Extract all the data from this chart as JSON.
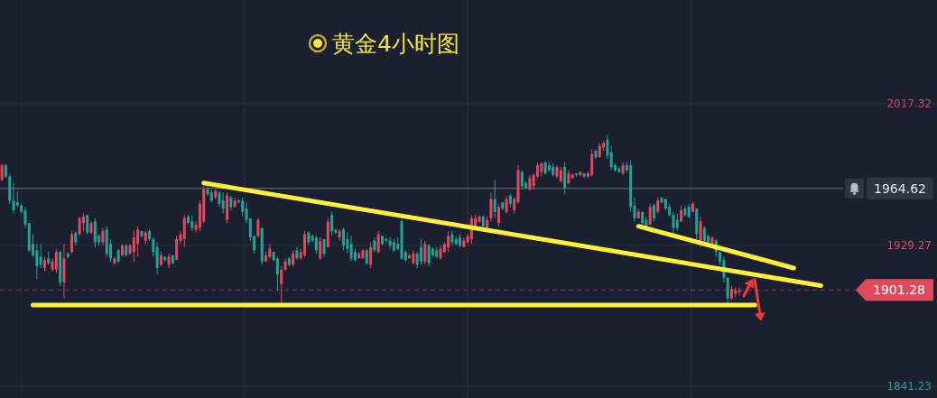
{
  "chart_data": {
    "type": "candlestick",
    "title": "黄金4小时图",
    "categories": [
      null,
      null,
      null,
      null,
      null,
      null,
      null,
      null,
      null,
      null,
      null,
      null,
      null,
      null,
      null,
      null,
      null,
      null,
      null,
      null,
      null,
      null,
      null,
      null,
      null,
      null,
      null,
      null,
      null,
      null,
      null,
      null,
      null,
      null,
      null,
      null,
      null,
      null,
      null,
      null,
      null,
      null,
      null,
      null,
      null,
      null,
      null,
      null,
      null,
      null,
      null,
      null,
      null,
      null,
      null,
      null,
      null,
      null,
      null,
      null,
      null,
      null,
      null,
      null,
      null,
      null,
      null,
      null,
      null,
      null,
      null,
      null,
      null,
      null,
      null,
      null,
      null,
      null,
      null,
      null,
      null,
      null,
      null,
      null,
      null,
      null,
      null,
      null,
      null,
      null,
      null,
      null,
      null,
      null,
      null,
      null,
      null,
      null,
      null,
      null,
      null,
      null,
      null,
      null,
      null,
      null,
      null,
      null,
      null,
      null,
      null,
      null,
      null,
      null,
      null,
      null,
      null,
      null,
      null,
      null,
      null,
      null,
      null,
      null,
      null,
      null,
      null,
      null,
      null,
      null,
      null,
      null,
      null,
      null,
      null,
      null,
      null,
      null,
      null,
      null,
      null,
      null,
      null,
      null,
      null,
      null,
      null,
      null,
      null,
      null,
      null,
      null,
      null,
      null,
      null,
      null,
      null,
      null,
      null,
      null,
      null,
      null,
      null,
      null,
      null,
      null,
      null,
      null,
      null,
      null,
      null,
      null,
      null,
      null,
      null,
      null,
      null,
      null,
      null,
      null,
      null,
      null,
      null,
      null,
      null,
      null,
      null,
      null,
      null,
      null,
      null,
      null,
      null,
      null,
      null,
      null,
      null,
      null,
      null,
      null,
      null,
      null,
      null,
      null,
      null,
      null,
      null,
      null,
      null,
      null,
      null,
      null,
      null,
      null,
      null,
      null,
      null
    ],
    "ohlc": [
      [
        1970,
        1980,
        1969,
        1979
      ],
      [
        1979,
        1980,
        1971,
        1972
      ],
      [
        1972,
        1973,
        1955,
        1957
      ],
      [
        1957,
        1968,
        1949,
        1951
      ],
      [
        1956,
        1963,
        1953,
        1954
      ],
      [
        1954,
        1955,
        1949,
        1950
      ],
      [
        1951,
        1953,
        1940,
        1942
      ],
      [
        1943,
        1943,
        1925,
        1926
      ],
      [
        1930,
        1936,
        1922,
        1923
      ],
      [
        1926,
        1930,
        1908,
        1916
      ],
      [
        1922,
        1930,
        1915,
        1917
      ],
      [
        1915,
        1922,
        1913,
        1920
      ],
      [
        1921,
        1925,
        1917,
        1918
      ],
      [
        1914,
        1921,
        1913,
        1919
      ],
      [
        1914,
        1927,
        1912,
        1925
      ],
      [
        1925,
        1926,
        1904,
        1906
      ],
      [
        1906,
        1930,
        1896,
        1921
      ],
      [
        1924,
        1925,
        1921,
        1922
      ],
      [
        1925,
        1938,
        1924,
        1936
      ],
      [
        1937,
        1938,
        1929,
        1931
      ],
      [
        1936,
        1947,
        1935,
        1946
      ],
      [
        1943,
        1949,
        1938,
        1947
      ],
      [
        1948,
        1948,
        1936,
        1937
      ],
      [
        1937,
        1944,
        1936,
        1943
      ],
      [
        1944,
        1946,
        1928,
        1931
      ],
      [
        1935,
        1936,
        1929,
        1931
      ],
      [
        1931,
        1940,
        1929,
        1938
      ],
      [
        1939,
        1941,
        1922,
        1924
      ],
      [
        1930,
        1933,
        1919,
        1921
      ],
      [
        1918,
        1922,
        1917,
        1921
      ],
      [
        1926,
        1927,
        1918,
        1919
      ],
      [
        1923,
        1930,
        1922,
        1929
      ],
      [
        1929,
        1930,
        1922,
        1923
      ],
      [
        1924,
        1930,
        1923,
        1929
      ],
      [
        1925,
        1938,
        1919,
        1934
      ],
      [
        1930,
        1941,
        1922,
        1939
      ],
      [
        1938,
        1938,
        1934,
        1935
      ],
      [
        1932,
        1938,
        1930,
        1937
      ],
      [
        1938,
        1939,
        1932,
        1933
      ],
      [
        1933,
        1934,
        1922,
        1925
      ],
      [
        1928,
        1931,
        1911,
        1915
      ],
      [
        1917,
        1925,
        1916,
        1923
      ],
      [
        1922,
        1922,
        1919,
        1920
      ],
      [
        1917,
        1924,
        1915,
        1922
      ],
      [
        1923,
        1923,
        1917,
        1918
      ],
      [
        1920,
        1935,
        1920,
        1933
      ],
      [
        1932,
        1938,
        1930,
        1936
      ],
      [
        1933,
        1948,
        1928,
        1946
      ],
      [
        1947,
        1948,
        1942,
        1943
      ],
      [
        1944,
        1948,
        1938,
        1940
      ],
      [
        1939,
        1944,
        1937,
        1942
      ],
      [
        1940,
        1957,
        1938,
        1955
      ],
      [
        1944,
        1966,
        1943,
        1964
      ],
      [
        1964,
        1966,
        1960,
        1961
      ],
      [
        1962,
        1964,
        1956,
        1957
      ],
      [
        1959,
        1964,
        1958,
        1963
      ],
      [
        1962,
        1963,
        1953,
        1955
      ],
      [
        1957,
        1962,
        1949,
        1952
      ],
      [
        1945,
        1962,
        1943,
        1960
      ],
      [
        1959,
        1960,
        1951,
        1953
      ],
      [
        1953,
        1959,
        1953,
        1957
      ],
      [
        1957,
        1958,
        1955,
        1956
      ],
      [
        1957,
        1959,
        1947,
        1950
      ],
      [
        1952,
        1956,
        1943,
        1945
      ],
      [
        1946,
        1946,
        1932,
        1934
      ],
      [
        1935,
        1935,
        1924,
        1926
      ],
      [
        1935,
        1946,
        1934,
        1945
      ],
      [
        1940,
        1940,
        1917,
        1919
      ],
      [
        1919,
        1925,
        1919,
        1923
      ],
      [
        1922,
        1930,
        1921,
        1927
      ],
      [
        1925,
        1925,
        1919,
        1920
      ],
      [
        1921,
        1922,
        1901,
        1911
      ],
      [
        1905,
        1916,
        1893,
        1914
      ],
      [
        1914,
        1921,
        1913,
        1919
      ],
      [
        1921,
        1922,
        1916,
        1917
      ],
      [
        1917,
        1926,
        1916,
        1924
      ],
      [
        1926,
        1928,
        1920,
        1921
      ],
      [
        1921,
        1927,
        1920,
        1925
      ],
      [
        1923,
        1938,
        1922,
        1936
      ],
      [
        1937,
        1938,
        1929,
        1931
      ],
      [
        1935,
        1936,
        1931,
        1932
      ],
      [
        1934,
        1935,
        1924,
        1926
      ],
      [
        1921,
        1934,
        1920,
        1932
      ],
      [
        1933,
        1933,
        1922,
        1924
      ],
      [
        1928,
        1946,
        1928,
        1944
      ],
      [
        1948,
        1950,
        1935,
        1938
      ],
      [
        1939,
        1939,
        1936,
        1937
      ],
      [
        1934,
        1939,
        1932,
        1938
      ],
      [
        1939,
        1940,
        1926,
        1929
      ],
      [
        1933,
        1937,
        1924,
        1927
      ],
      [
        1930,
        1935,
        1919,
        1921
      ],
      [
        1925,
        1927,
        1919,
        1920
      ],
      [
        1921,
        1925,
        1921,
        1924
      ],
      [
        1921,
        1927,
        1921,
        1926
      ],
      [
        1926,
        1927,
        1917,
        1918
      ],
      [
        1917,
        1931,
        1915,
        1928
      ],
      [
        1932,
        1934,
        1925,
        1926
      ],
      [
        1925,
        1938,
        1924,
        1936
      ],
      [
        1935,
        1935,
        1929,
        1930
      ],
      [
        1933,
        1934,
        1931,
        1932
      ],
      [
        1932,
        1934,
        1927,
        1929
      ],
      [
        1931,
        1933,
        1925,
        1926
      ],
      [
        1930,
        1934,
        1926,
        1927
      ],
      [
        1944,
        1945,
        1920,
        1921
      ],
      [
        1925,
        1926,
        1919,
        1920
      ],
      [
        1921,
        1924,
        1921,
        1923
      ],
      [
        1918,
        1926,
        1917,
        1924
      ],
      [
        1924,
        1925,
        1915,
        1917
      ],
      [
        1928,
        1933,
        1917,
        1919
      ],
      [
        1919,
        1932,
        1917,
        1930
      ],
      [
        1929,
        1930,
        1916,
        1918
      ],
      [
        1927,
        1928,
        1922,
        1923
      ],
      [
        1926,
        1928,
        1921,
        1922
      ],
      [
        1921,
        1929,
        1920,
        1927
      ],
      [
        1925,
        1931,
        1924,
        1930
      ],
      [
        1928,
        1938,
        1925,
        1935
      ],
      [
        1936,
        1938,
        1929,
        1931
      ],
      [
        1933,
        1935,
        1929,
        1930
      ],
      [
        1934,
        1936,
        1928,
        1929
      ],
      [
        1928,
        1934,
        1928,
        1932
      ],
      [
        1931,
        1936,
        1930,
        1935
      ],
      [
        1933,
        1948,
        1930,
        1946
      ],
      [
        1941,
        1948,
        1940,
        1946
      ],
      [
        1944,
        1948,
        1943,
        1947
      ],
      [
        1947,
        1948,
        1940,
        1941
      ],
      [
        1940,
        1947,
        1939,
        1945
      ],
      [
        1946,
        1962,
        1944,
        1958
      ],
      [
        1958,
        1970,
        1946,
        1950
      ],
      [
        1943,
        1955,
        1941,
        1953
      ],
      [
        1956,
        1956,
        1951,
        1952
      ],
      [
        1950,
        1960,
        1949,
        1958
      ],
      [
        1960,
        1961,
        1953,
        1955
      ],
      [
        1951,
        1959,
        1949,
        1958
      ],
      [
        1956,
        1979,
        1955,
        1976
      ],
      [
        1975,
        1976,
        1964,
        1966
      ],
      [
        1968,
        1969,
        1964,
        1965
      ],
      [
        1964,
        1973,
        1963,
        1971
      ],
      [
        1966,
        1974,
        1964,
        1973
      ],
      [
        1972,
        1981,
        1971,
        1979
      ],
      [
        1975,
        1981,
        1972,
        1980
      ],
      [
        1981,
        1981,
        1973,
        1974
      ],
      [
        1979,
        1981,
        1975,
        1976
      ],
      [
        1978,
        1980,
        1972,
        1973
      ],
      [
        1972,
        1979,
        1971,
        1978
      ],
      [
        1969,
        1978,
        1968,
        1976
      ],
      [
        1978,
        1981,
        1961,
        1965
      ],
      [
        1968,
        1976,
        1967,
        1974
      ],
      [
        1971,
        1974,
        1971,
        1973
      ],
      [
        1974,
        1974,
        1972,
        1973
      ],
      [
        1973,
        1975,
        1972,
        1975
      ],
      [
        1974,
        1974,
        1971,
        1972
      ],
      [
        1972,
        1975,
        1971,
        1974
      ],
      [
        1973,
        1989,
        1972,
        1986
      ],
      [
        1988,
        1989,
        1983,
        1984
      ],
      [
        1984,
        1993,
        1984,
        1991
      ],
      [
        1990,
        1994,
        1988,
        1993
      ],
      [
        1995,
        1998,
        1983,
        1985
      ],
      [
        1987,
        1991,
        1976,
        1978
      ],
      [
        1979,
        1980,
        1975,
        1976
      ],
      [
        1977,
        1978,
        1974,
        1975
      ],
      [
        1974,
        1981,
        1973,
        1979
      ],
      [
        1979,
        1981,
        1975,
        1976
      ],
      [
        1979,
        1982,
        1950,
        1953
      ],
      [
        1954,
        1959,
        1944,
        1946
      ],
      [
        1946,
        1952,
        1946,
        1950
      ],
      [
        1950,
        1950,
        1942,
        1943
      ],
      [
        1945,
        1947,
        1940,
        1941
      ],
      [
        1942,
        1955,
        1942,
        1953
      ],
      [
        1954,
        1955,
        1944,
        1946
      ],
      [
        1950,
        1959,
        1949,
        1957
      ],
      [
        1959,
        1959,
        1955,
        1956
      ],
      [
        1958,
        1958,
        1951,
        1952
      ],
      [
        1953,
        1955,
        1947,
        1948
      ],
      [
        1948,
        1950,
        1937,
        1940
      ],
      [
        1945,
        1949,
        1938,
        1940
      ],
      [
        1944,
        1954,
        1944,
        1951
      ],
      [
        1952,
        1954,
        1947,
        1948
      ],
      [
        1953,
        1955,
        1946,
        1947
      ],
      [
        1950,
        1956,
        1950,
        1955
      ],
      [
        1952,
        1952,
        1933,
        1936
      ],
      [
        1932,
        1947,
        1928,
        1944
      ],
      [
        1940,
        1941,
        1930,
        1932
      ],
      [
        1935,
        1936,
        1930,
        1931
      ],
      [
        1930,
        1935,
        1930,
        1934
      ],
      [
        1932,
        1933,
        1922,
        1925
      ],
      [
        1925,
        1925,
        1917,
        1919
      ],
      [
        1920,
        1922,
        1906,
        1909
      ],
      [
        1909,
        1909,
        1893,
        1896
      ],
      [
        1896,
        1904,
        1895,
        1902
      ],
      [
        1899,
        1903,
        1897,
        1901
      ],
      [
        1900,
        1903,
        1898,
        1901
      ],
      null,
      null,
      null,
      null,
      null,
      null,
      null,
      null,
      null,
      null,
      null,
      null,
      null,
      null,
      null,
      null,
      null,
      null,
      null,
      null,
      null,
      null,
      null,
      null,
      null,
      null
    ],
    "series": [
      {
        "type": "line",
        "color": "#fff03a",
        "values": [
          null,
          null,
          null,
          null,
          null,
          null,
          null,
          null,
          null,
          null,
          null,
          null,
          null,
          null,
          null,
          null,
          null,
          null,
          null,
          null,
          null,
          null,
          null,
          null,
          null,
          null,
          null,
          null,
          null,
          null,
          null,
          null,
          null,
          null,
          null,
          null,
          null,
          null,
          null,
          null,
          null,
          null,
          null,
          null,
          null,
          null,
          null,
          null,
          null,
          null,
          null,
          null,
          1968,
          null,
          null,
          null,
          null,
          null,
          null,
          null,
          null,
          null,
          null,
          null,
          null,
          null,
          null,
          null,
          null,
          null,
          null,
          null,
          null,
          null,
          null,
          null,
          null,
          null,
          null,
          null,
          null,
          null,
          null,
          null,
          null,
          null,
          null,
          null,
          null,
          null,
          null,
          null,
          null,
          null,
          null,
          null,
          null,
          null,
          null,
          null,
          null,
          null,
          null,
          null,
          null,
          null,
          null,
          null,
          null,
          null,
          null,
          null,
          null,
          null,
          null,
          null,
          null,
          null,
          null,
          null,
          null,
          null,
          null,
          null,
          null,
          null,
          null,
          null,
          null,
          null,
          null,
          null,
          null,
          null,
          null,
          null,
          null,
          null,
          null,
          null,
          null,
          null,
          null,
          null,
          null,
          null,
          null,
          null,
          null,
          null,
          null,
          null,
          null,
          null,
          null,
          null,
          null,
          null,
          null,
          null,
          null,
          null,
          null,
          null,
          null,
          null,
          null,
          null,
          null,
          null,
          null,
          null,
          null,
          null,
          null,
          null,
          null,
          null,
          null,
          null,
          null,
          null,
          null,
          null,
          null,
          null,
          null,
          null,
          null,
          null,
          null,
          null,
          null,
          null,
          null,
          null,
          null,
          null,
          null,
          null,
          null,
          null,
          null,
          null,
          null,
          null,
          null,
          null,
          null,
          null,
          null,
          1904,
          null,
          null,
          null,
          null,
          null
        ]
      },
      {
        "type": "line",
        "color": "#fff03a",
        "values": [
          null,
          null,
          null,
          null,
          null,
          null,
          null,
          null,
          null,
          null,
          null,
          null,
          null,
          null,
          null,
          null,
          null,
          null,
          null,
          null,
          null,
          null,
          null,
          null,
          null,
          null,
          null,
          null,
          null,
          null,
          null,
          null,
          null,
          null,
          null,
          null,
          null,
          null,
          null,
          null,
          null,
          null,
          null,
          null,
          null,
          null,
          null,
          null,
          null,
          null,
          null,
          null,
          null,
          null,
          null,
          null,
          null,
          null,
          null,
          null,
          null,
          null,
          null,
          null,
          null,
          null,
          null,
          null,
          null,
          null,
          null,
          null,
          null,
          null,
          null,
          null,
          null,
          null,
          null,
          null,
          null,
          null,
          null,
          null,
          null,
          null,
          null,
          null,
          null,
          null,
          null,
          null,
          null,
          null,
          null,
          null,
          null,
          null,
          null,
          null,
          null,
          null,
          null,
          null,
          null,
          null,
          null,
          null,
          null,
          null,
          null,
          null,
          null,
          null,
          null,
          null,
          null,
          null,
          null,
          null,
          null,
          null,
          null,
          null,
          null,
          null,
          null,
          null,
          null,
          null,
          null,
          null,
          null,
          null,
          null,
          null,
          null,
          null,
          null,
          null,
          null,
          null,
          null,
          null,
          null,
          null,
          null,
          null,
          null,
          null,
          null,
          null,
          null,
          null,
          null,
          null,
          null,
          null,
          null,
          null,
          null,
          null,
          null,
          null,
          1941,
          null,
          null,
          null,
          null,
          null,
          null,
          null,
          null,
          null,
          null,
          null,
          null,
          null,
          null,
          null,
          null,
          null,
          null,
          null,
          null,
          null,
          null,
          null,
          null,
          null,
          null,
          null,
          null,
          null,
          null,
          null,
          null,
          null,
          null,
          null,
          null,
          null,
          null,
          null,
          1915,
          null,
          null,
          null,
          null,
          null,
          null,
          null,
          null,
          null,
          null,
          null,
          null
        ]
      },
      {
        "type": "line",
        "color": "#fff03a",
        "values": [
          null,
          null,
          null,
          null,
          null,
          null,
          null,
          null,
          1892,
          null,
          null,
          null,
          null,
          null,
          null,
          null,
          null,
          null,
          null,
          null,
          null,
          null,
          null,
          null,
          null,
          null,
          null,
          null,
          null,
          null,
          null,
          null,
          null,
          null,
          null,
          null,
          null,
          null,
          null,
          null,
          null,
          null,
          null,
          null,
          null,
          null,
          null,
          null,
          null,
          null,
          null,
          null,
          null,
          null,
          null,
          null,
          null,
          null,
          null,
          null,
          null,
          null,
          null,
          null,
          null,
          null,
          null,
          null,
          null,
          null,
          null,
          null,
          null,
          null,
          null,
          null,
          null,
          null,
          null,
          null,
          null,
          null,
          null,
          null,
          null,
          null,
          null,
          null,
          null,
          null,
          null,
          null,
          null,
          null,
          null,
          null,
          null,
          null,
          null,
          null,
          null,
          null,
          null,
          null,
          null,
          null,
          null,
          null,
          null,
          null,
          null,
          null,
          null,
          null,
          null,
          null,
          null,
          null,
          null,
          null,
          null,
          null,
          null,
          null,
          null,
          null,
          null,
          null,
          null,
          null,
          null,
          null,
          null,
          null,
          null,
          null,
          null,
          null,
          null,
          null,
          null,
          null,
          null,
          null,
          null,
          null,
          null,
          null,
          null,
          null,
          null,
          null,
          null,
          null,
          null,
          null,
          null,
          null,
          null,
          null,
          null,
          null,
          null,
          null,
          null,
          null,
          null,
          null,
          null,
          null,
          null,
          null,
          null,
          null,
          null,
          null,
          null,
          null,
          null,
          null,
          null,
          null,
          null,
          null,
          null,
          null,
          null,
          null,
          null,
          null,
          null,
          null,
          null,
          null,
          1892,
          null,
          null,
          null,
          null,
          null,
          null,
          null,
          null,
          null,
          null,
          null,
          null,
          null,
          null,
          null,
          null,
          null,
          null,
          null,
          null,
          null,
          null
        ]
      }
    ],
    "ylim": [
      1834,
      2082
    ],
    "yticks": [
      2017.32,
      1929.27,
      1841.23
    ],
    "tick_labels": "y",
    "grid": true,
    "ref_lines": [
      {
        "axis": "y",
        "value": 1964.62,
        "label": "1964.62",
        "color": "#6f7482",
        "line_style": "solid"
      },
      {
        "axis": "y",
        "value": 1901.28,
        "label": "1901.28",
        "color": "#e0485c",
        "line_style": "dashed"
      }
    ]
  }
}
